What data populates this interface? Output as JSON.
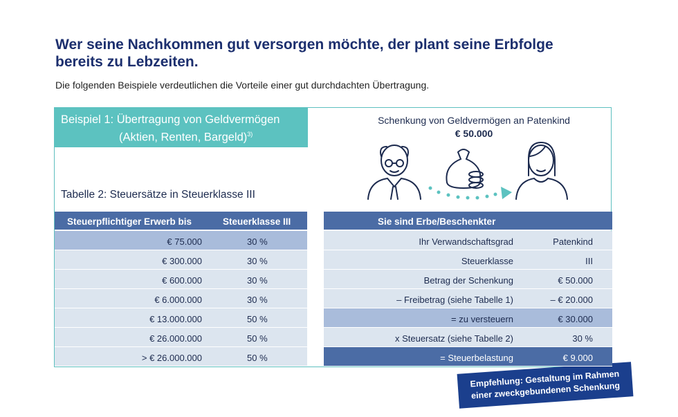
{
  "header": {
    "title": [
      "Wer seine Nachkommen gut versorgen möchte, der plant seine Erbfolge",
      "bereits zu Lebzeiten."
    ],
    "subtitle": "Die folgenden Beispiele verdeutlichen die Vorteile einer gut durchdachten Übertragung."
  },
  "example": {
    "title_line1": "Beispiel 1: Übertragung von Geldvermögen",
    "title_line2": "(Aktien, Renten, Bargeld)",
    "footnote": "3)"
  },
  "gift": {
    "caption": "Schenkung von Geldvermögen an Patenkind",
    "amount": "€ 50.000"
  },
  "table_caption": "Tabelle 2: Steuersätze in Steuerklasse III",
  "rates_table": {
    "header": [
      "Steuerpflichtiger Erwerb bis",
      "Steuerklasse III"
    ],
    "rows": [
      [
        "€ 75.000",
        "30 %"
      ],
      [
        "€ 300.000",
        "30 %"
      ],
      [
        "€ 600.000",
        "30 %"
      ],
      [
        "€ 6.000.000",
        "30 %"
      ],
      [
        "€ 13.000.000",
        "50 %"
      ],
      [
        "€ 26.000.000",
        "50 %"
      ],
      [
        "> € 26.000.000",
        "50 %"
      ]
    ]
  },
  "calc_table": {
    "header": "Sie sind Erbe/Beschenkter",
    "rows": [
      [
        "Ihr Verwandschaftsgrad",
        "Patenkind"
      ],
      [
        "Steuerklasse",
        "III"
      ],
      [
        "Betrag der Schenkung",
        "€ 50.000"
      ],
      [
        "– Freibetrag (siehe Tabelle 1)",
        "– € 20.000"
      ],
      [
        "= zu versteuern",
        "€ 30.000"
      ],
      [
        "x Steuersatz (siehe Tabelle 2)",
        "30 %"
      ],
      [
        "= Steuerbelastung",
        "€ 9.000"
      ]
    ]
  },
  "recommendation": [
    "Empfehlung: Gestaltung im Rahmen",
    "einer zweckgebundenen Schenkung"
  ]
}
